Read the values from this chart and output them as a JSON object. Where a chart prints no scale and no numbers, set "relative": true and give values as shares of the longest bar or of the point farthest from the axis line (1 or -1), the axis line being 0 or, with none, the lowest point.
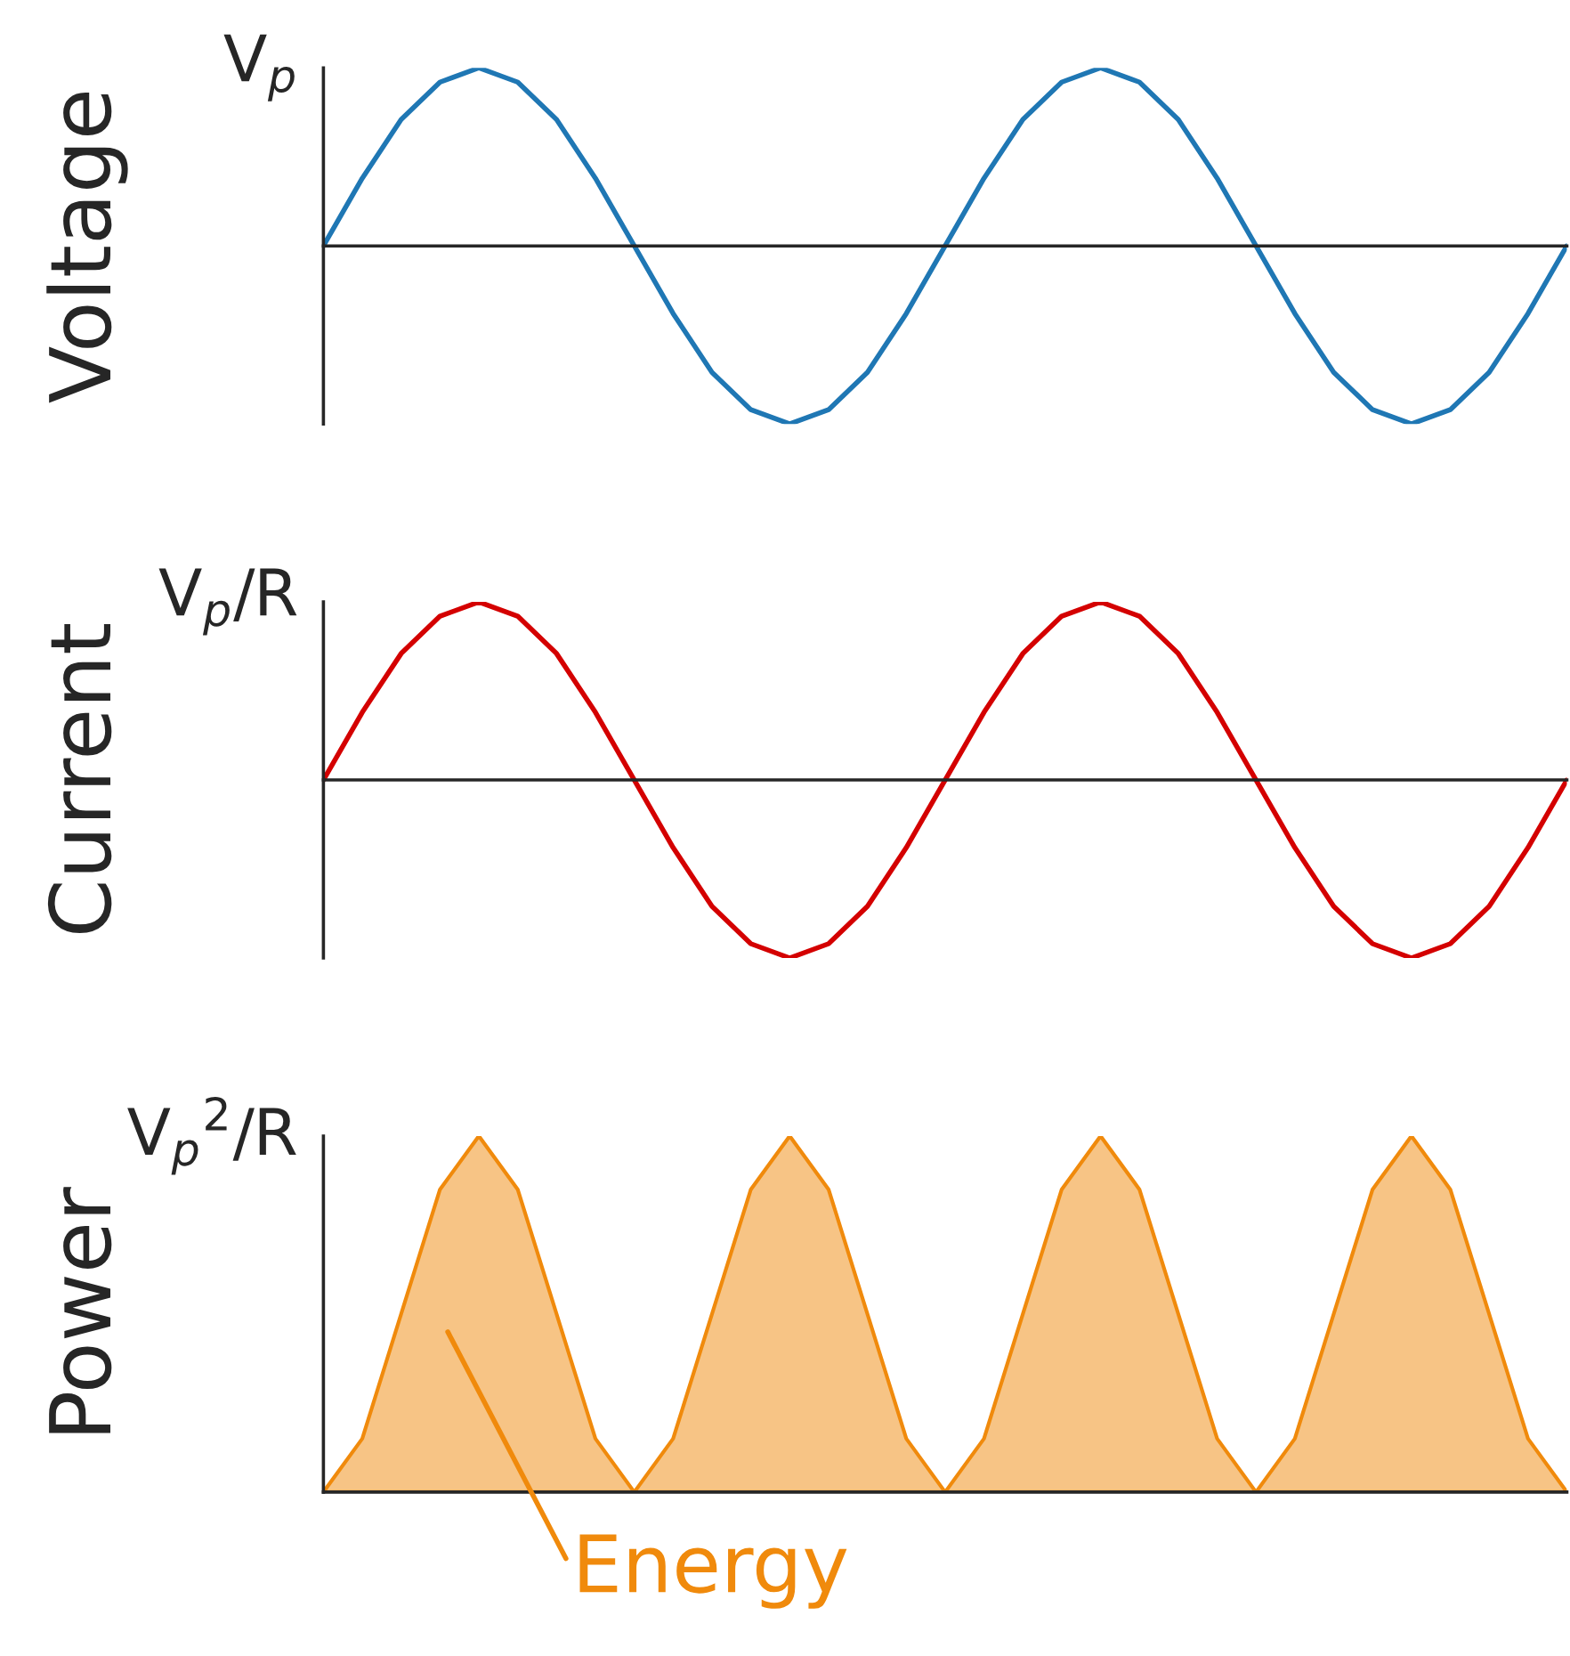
{
  "chart_data": [
    {
      "type": "line",
      "ylabel": "Voltage",
      "relative": true,
      "categories": [
        null,
        null,
        null,
        null,
        null,
        null,
        null,
        null,
        null,
        null,
        null,
        null,
        null,
        null,
        null,
        null,
        null,
        null,
        null,
        null,
        null,
        null,
        null,
        null,
        null,
        null,
        null,
        null,
        null,
        null,
        null,
        null,
        null
      ],
      "series": [
        {
          "color": "#1f77b4",
          "values": [
            0,
            0.38,
            0.71,
            0.92,
            1,
            0.92,
            0.71,
            0.38,
            0,
            -0.38,
            -0.71,
            -0.92,
            -1,
            -0.92,
            -0.71,
            -0.38,
            0,
            0.38,
            0.71,
            0.92,
            1,
            0.92,
            0.71,
            0.38,
            0,
            -0.38,
            -0.71,
            -0.92,
            -1,
            -0.92,
            -0.71,
            -0.38,
            0
          ]
        }
      ],
      "grid": false,
      "annotations": [
        "V$_{p}$"
      ]
    },
    {
      "type": "line",
      "ylabel": "Current",
      "relative": true,
      "categories": [
        null,
        null,
        null,
        null,
        null,
        null,
        null,
        null,
        null,
        null,
        null,
        null,
        null,
        null,
        null,
        null,
        null,
        null,
        null,
        null,
        null,
        null,
        null,
        null,
        null,
        null,
        null,
        null,
        null,
        null,
        null,
        null,
        null
      ],
      "series": [
        {
          "color": "#d40000",
          "values": [
            0,
            0.38,
            0.71,
            0.92,
            1,
            0.92,
            0.71,
            0.38,
            0,
            -0.38,
            -0.71,
            -0.92,
            -1,
            -0.92,
            -0.71,
            -0.38,
            0,
            0.38,
            0.71,
            0.92,
            1,
            0.92,
            0.71,
            0.38,
            0,
            -0.38,
            -0.71,
            -0.92,
            -1,
            -0.92,
            -0.71,
            -0.38,
            0
          ]
        }
      ],
      "grid": false,
      "annotations": [
        "V$_{p}$/R"
      ]
    },
    {
      "type": "area",
      "ylabel": "Power",
      "relative": true,
      "categories": [
        null,
        null,
        null,
        null,
        null,
        null,
        null,
        null,
        null,
        null,
        null,
        null,
        null,
        null,
        null,
        null,
        null,
        null,
        null,
        null,
        null,
        null,
        null,
        null,
        null,
        null,
        null,
        null,
        null,
        null,
        null,
        null,
        null
      ],
      "series": [
        {
          "color": "#f08a0c",
          "values": [
            0,
            0.15,
            0.5,
            0.85,
            1,
            0.85,
            0.5,
            0.15,
            0,
            0.15,
            0.5,
            0.85,
            1,
            0.85,
            0.5,
            0.15,
            0,
            0.15,
            0.5,
            0.85,
            1,
            0.85,
            0.5,
            0.15,
            0,
            0.15,
            0.5,
            0.85,
            1,
            0.85,
            0.5,
            0.15,
            0
          ]
        }
      ],
      "grid": false,
      "annotations": [
        "V$_{p}$$^{2}$/R",
        "Energy"
      ]
    }
  ]
}
